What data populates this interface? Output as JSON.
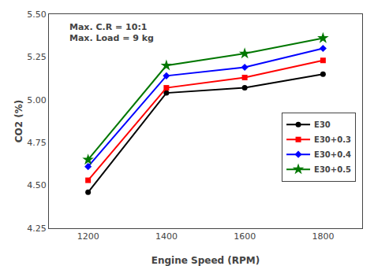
{
  "chart_data": {
    "type": "line",
    "x": [
      1200,
      1400,
      1600,
      1800
    ],
    "series": [
      {
        "name": "E30",
        "color": "#000000",
        "marker": "circle",
        "values": [
          4.46,
          5.04,
          5.07,
          5.15
        ]
      },
      {
        "name": "E30+0.3",
        "color": "#ff0000",
        "marker": "square",
        "values": [
          4.53,
          5.07,
          5.13,
          5.23
        ]
      },
      {
        "name": "E30+0.4",
        "color": "#0000ff",
        "marker": "diamond",
        "values": [
          4.61,
          5.14,
          5.19,
          5.3
        ]
      },
      {
        "name": "E30+0.5",
        "color": "#007700",
        "marker": "star",
        "values": [
          4.65,
          5.2,
          5.27,
          5.36
        ]
      }
    ],
    "xlabel": "Engine Speed (RPM)",
    "ylabel": "CO2 (%)",
    "xlim": [
      1100,
      1900
    ],
    "xticks": [
      1200,
      1400,
      1600,
      1800
    ],
    "ylim": [
      4.25,
      5.5
    ],
    "yticks": [
      4.25,
      {
        "value": 4.5,
        "label": "4.50"
      },
      4.75,
      {
        "value": 5.0,
        "label": "5.00"
      },
      5.25,
      {
        "value": 5.5,
        "label": "5.50"
      }
    ],
    "annotations": [
      "Max. C.R = 10:1",
      "Max. Load = 9 kg"
    ],
    "grid": false,
    "legend": "right"
  }
}
